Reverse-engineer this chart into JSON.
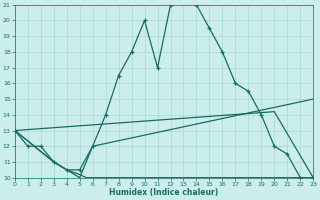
{
  "xlabel": "Humidex (Indice chaleur)",
  "xlim": [
    0,
    23
  ],
  "ylim": [
    10,
    21
  ],
  "yticks": [
    10,
    11,
    12,
    13,
    14,
    15,
    16,
    17,
    18,
    19,
    20,
    21
  ],
  "xticks": [
    0,
    1,
    2,
    3,
    4,
    5,
    6,
    7,
    8,
    9,
    10,
    11,
    12,
    13,
    14,
    15,
    16,
    17,
    18,
    19,
    20,
    21,
    22,
    23
  ],
  "bg_color": "#cbeeed",
  "grid_color": "#a8d8d5",
  "line_color": "#1a6b60",
  "main_curve": {
    "x": [
      0,
      1,
      2,
      3,
      4,
      5,
      6,
      7,
      8,
      9,
      10,
      11,
      12,
      13,
      14,
      15,
      16,
      17,
      18,
      19,
      20,
      21,
      22,
      23
    ],
    "y": [
      13,
      12,
      12,
      11,
      10.5,
      10.5,
      12,
      14,
      16.5,
      18,
      20,
      17,
      21,
      21.2,
      21,
      19.5,
      18,
      16,
      15.5,
      14,
      12,
      11.5,
      10,
      10
    ]
  },
  "line_flat": {
    "x": [
      0,
      3,
      4,
      5,
      5.5,
      23
    ],
    "y": [
      13,
      11,
      10.5,
      10.2,
      10,
      10
    ]
  },
  "line_diag_low": {
    "x": [
      0,
      3,
      4,
      5,
      6,
      23
    ],
    "y": [
      13,
      11,
      10.5,
      10,
      12,
      15
    ]
  },
  "line_diag_high": {
    "x": [
      0,
      20,
      23
    ],
    "y": [
      13,
      14.2,
      10
    ]
  }
}
